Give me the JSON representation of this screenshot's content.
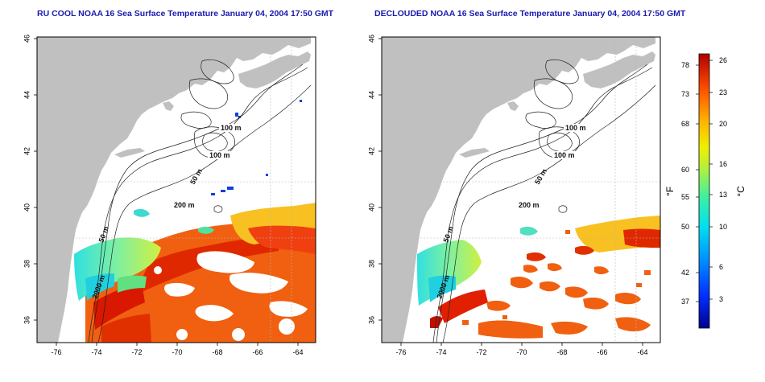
{
  "titles": {
    "left": "RU COOL NOAA 16 Sea Surface Temperature January 04, 2004 17:50 GMT",
    "right": "DECLOUDED NOAA 16 Sea Surface Temperature January 04, 2004 17:50 GMT"
  },
  "axes": {
    "lon_ticks": [
      "-76",
      "-74",
      "-72",
      "-70",
      "-68",
      "-66",
      "-64"
    ],
    "lat_ticks": [
      "36",
      "38",
      "40",
      "42",
      "44",
      "46"
    ]
  },
  "contour_labels": {
    "left": [
      "100 m",
      "100 m",
      "50 m",
      "200 m",
      "50 m",
      "2000 m"
    ],
    "right": [
      "100 m",
      "100 m",
      "50 m",
      "200 m",
      "50 m",
      "2000 m"
    ]
  },
  "colorbar": {
    "f_label": "°F",
    "c_label": "°C",
    "f_ticks": [
      "78",
      "73",
      "68",
      "60",
      "55",
      "50",
      "42",
      "37"
    ],
    "c_ticks": [
      "26",
      "23",
      "20",
      "16",
      "13",
      "10",
      "6",
      "3"
    ]
  },
  "colors": {
    "land": "#c0c0c0",
    "title": "#1a1ab0",
    "grid": "#b8b8b8"
  }
}
